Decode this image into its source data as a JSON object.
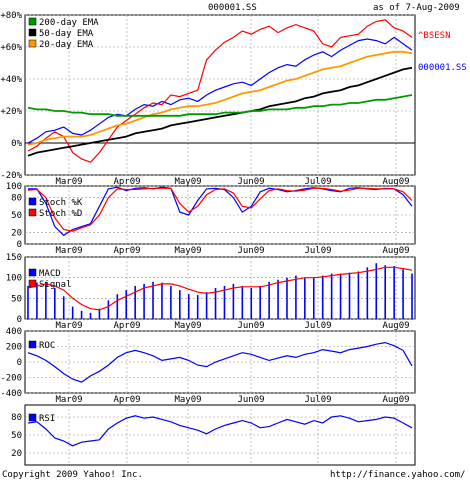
{
  "header": {
    "symbol": "000001.SS",
    "as_of": "as of  7-Aug-2009"
  },
  "footer": {
    "copyright": "Copyright 2009 Yahoo! Inc.",
    "url": "http://finance.yahoo.com/"
  },
  "colors": {
    "ema200": "#009900",
    "ema50": "#000000",
    "ema20": "#ff9900",
    "price": "#0000ff",
    "bsesn": "#ff0000",
    "stochK": "#0000ff",
    "stochD": "#ff0000",
    "macd": "#0000ff",
    "signal": "#ff0000",
    "roc": "#0000ff",
    "rsi": "#0000ff",
    "grid": "#999999"
  },
  "chart_data": [
    {
      "type": "line",
      "panel": "price",
      "x_labels": [
        "Mar09",
        "Apr09",
        "May09",
        "Jun09",
        "Jul09",
        "Aug09"
      ],
      "y_ticks": [
        "+80%",
        "+60%",
        "+40%",
        "+20%",
        "0%",
        "-20%"
      ],
      "ylim": [
        -20,
        80
      ],
      "legend": [
        "200-day EMA",
        "50-day EMA",
        "20-day EMA"
      ],
      "series_labels": [
        "^BSESN",
        "000001.SS"
      ],
      "series": [
        {
          "name": "000001.SS",
          "values": [
            0,
            3,
            7,
            8,
            10,
            6,
            5,
            8,
            12,
            16,
            18,
            17,
            21,
            24,
            23,
            26,
            24,
            27,
            28,
            26,
            30,
            33,
            35,
            37,
            38,
            36,
            40,
            44,
            47,
            49,
            48,
            52,
            55,
            57,
            54,
            58,
            61,
            64,
            65,
            64,
            62,
            66,
            62,
            58
          ]
        },
        {
          "name": "^BSESN",
          "values": [
            -5,
            -2,
            3,
            7,
            4,
            -6,
            -10,
            -12,
            -6,
            2,
            10,
            14,
            18,
            22,
            25,
            24,
            30,
            29,
            31,
            33,
            52,
            58,
            63,
            66,
            70,
            68,
            71,
            73,
            69,
            72,
            74,
            72,
            70,
            62,
            60,
            66,
            67,
            68,
            73,
            76,
            77,
            72,
            70,
            66
          ]
        },
        {
          "name": "20-day EMA",
          "values": [
            -1,
            0,
            2,
            3,
            4,
            4,
            4,
            5,
            7,
            9,
            11,
            12,
            14,
            16,
            18,
            19,
            21,
            22,
            23,
            23,
            24,
            25,
            27,
            29,
            31,
            32,
            33,
            35,
            37,
            39,
            40,
            42,
            44,
            46,
            47,
            48,
            50,
            52,
            54,
            55,
            56,
            57,
            57,
            56
          ]
        },
        {
          "name": "50-day EMA",
          "values": [
            -8,
            -6,
            -5,
            -4,
            -3,
            -2,
            -1,
            0,
            1,
            2,
            3,
            4,
            6,
            7,
            8,
            9,
            11,
            12,
            13,
            14,
            15,
            16,
            17,
            18,
            19,
            20,
            21,
            23,
            24,
            25,
            26,
            28,
            29,
            31,
            32,
            33,
            35,
            36,
            38,
            40,
            42,
            44,
            46,
            47
          ]
        },
        {
          "name": "200-day EMA",
          "values": [
            22,
            21,
            21,
            20,
            20,
            19,
            19,
            18,
            18,
            18,
            17,
            17,
            17,
            17,
            17,
            17,
            17,
            17,
            18,
            18,
            18,
            18,
            19,
            19,
            19,
            20,
            20,
            21,
            21,
            21,
            22,
            22,
            23,
            23,
            24,
            24,
            25,
            25,
            26,
            27,
            27,
            28,
            29,
            30
          ]
        }
      ]
    },
    {
      "type": "line",
      "panel": "stochastic",
      "y_ticks": [
        "100",
        "80",
        "50",
        "20",
        "0"
      ],
      "ylim": [
        0,
        100
      ],
      "legend": [
        "Stoch %K",
        "Stoch %D"
      ],
      "series": [
        {
          "name": "Stoch %K",
          "values": [
            95,
            95,
            70,
            30,
            15,
            25,
            30,
            35,
            65,
            95,
            98,
            92,
            96,
            97,
            95,
            98,
            96,
            55,
            50,
            75,
            95,
            96,
            94,
            80,
            55,
            65,
            90,
            96,
            94,
            90,
            92,
            95,
            97,
            95,
            92,
            90,
            96,
            97,
            95,
            94,
            96,
            95,
            85,
            65
          ]
        },
        {
          "name": "Stoch %D",
          "values": [
            93,
            94,
            80,
            45,
            25,
            22,
            28,
            33,
            50,
            80,
            95,
            94,
            94,
            95,
            96,
            96,
            96,
            70,
            55,
            65,
            85,
            94,
            95,
            88,
            65,
            62,
            78,
            92,
            95,
            92,
            91,
            93,
            96,
            96,
            94,
            91,
            93,
            96,
            96,
            95,
            95,
            95,
            90,
            75
          ]
        }
      ]
    },
    {
      "type": "bar",
      "panel": "macd",
      "y_ticks": [
        "150",
        "100",
        "50",
        "0"
      ],
      "ylim": [
        0,
        150
      ],
      "legend": [
        "MACD",
        "Signal"
      ],
      "series": [
        {
          "name": "MACD",
          "values": [
            80,
            88,
            90,
            75,
            55,
            30,
            20,
            15,
            25,
            45,
            60,
            70,
            80,
            85,
            90,
            88,
            80,
            70,
            60,
            58,
            65,
            75,
            80,
            85,
            80,
            75,
            80,
            90,
            95,
            100,
            105,
            100,
            100,
            105,
            110,
            110,
            112,
            115,
            125,
            135,
            130,
            128,
            120,
            110
          ]
        },
        {
          "name": "Signal",
          "values": [
            75,
            80,
            85,
            80,
            70,
            50,
            35,
            25,
            22,
            30,
            45,
            55,
            65,
            75,
            80,
            85,
            85,
            80,
            72,
            65,
            62,
            65,
            70,
            75,
            78,
            78,
            78,
            82,
            88,
            92,
            96,
            100,
            100,
            102,
            105,
            108,
            110,
            112,
            116,
            120,
            125,
            125,
            122,
            118
          ]
        }
      ]
    },
    {
      "type": "line",
      "panel": "roc",
      "y_ticks": [
        "400",
        "200",
        "0",
        "-200",
        "-400"
      ],
      "ylim": [
        -400,
        400
      ],
      "legend": [
        "ROC"
      ],
      "series": [
        {
          "name": "ROC",
          "values": [
            120,
            80,
            20,
            -60,
            -150,
            -220,
            -260,
            -180,
            -120,
            -40,
            60,
            120,
            150,
            120,
            80,
            20,
            40,
            60,
            20,
            -40,
            -60,
            0,
            40,
            80,
            120,
            100,
            60,
            20,
            50,
            80,
            60,
            100,
            120,
            160,
            140,
            120,
            160,
            180,
            200,
            230,
            250,
            210,
            150,
            -50
          ]
        }
      ]
    },
    {
      "type": "line",
      "panel": "rsi",
      "y_ticks": [
        "80",
        "50",
        "20"
      ],
      "ylim": [
        0,
        100
      ],
      "legend": [
        "RSI"
      ],
      "series": [
        {
          "name": "RSI",
          "values": [
            70,
            72,
            60,
            45,
            40,
            32,
            38,
            40,
            42,
            60,
            70,
            78,
            82,
            78,
            80,
            76,
            72,
            66,
            62,
            58,
            52,
            60,
            66,
            70,
            74,
            70,
            62,
            64,
            70,
            76,
            72,
            68,
            74,
            70,
            80,
            82,
            78,
            72,
            74,
            76,
            80,
            78,
            70,
            62
          ]
        }
      ]
    }
  ]
}
